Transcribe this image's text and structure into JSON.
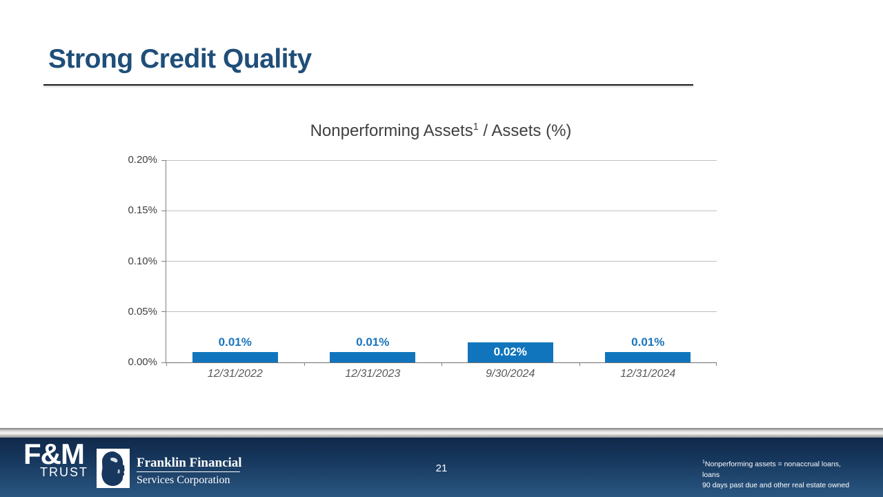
{
  "slide": {
    "title": "Strong Credit Quality",
    "page_number": "21"
  },
  "chart": {
    "title_pre": "Nonperforming Assets",
    "title_sup": "1",
    "title_post": " / Assets (%)"
  },
  "chart_data": {
    "type": "bar",
    "title": "Nonperforming Assets(1) / Assets (%)",
    "categories": [
      "12/31/2022",
      "12/31/2023",
      "9/30/2024",
      "12/31/2024"
    ],
    "values": [
      0.01,
      0.01,
      0.02,
      0.01
    ],
    "data_labels": [
      "0.01%",
      "0.01%",
      "0.02%",
      "0.01%"
    ],
    "label_placement": [
      "above",
      "above",
      "inside",
      "above"
    ],
    "ylim": [
      0,
      0.2
    ],
    "yticks": [
      {
        "value": 0.2,
        "label": "0.20%"
      },
      {
        "value": 0.15,
        "label": "0.15%"
      },
      {
        "value": 0.1,
        "label": "0.10%"
      },
      {
        "value": 0.05,
        "label": "0.05%"
      },
      {
        "value": 0.0,
        "label": "0.00%"
      }
    ],
    "grid": true,
    "legend": false,
    "bar_color": "#1175bd",
    "label_color_above": "#1b75bc",
    "label_color_inside": "#ffffff",
    "xlabel": "",
    "ylabel": ""
  },
  "footer": {
    "fm_logo_main": "F&M",
    "fm_logo_sub": "TRUST",
    "franklin_name": "Franklin Financial",
    "franklin_sub": "Services Corporation",
    "footnote_sup": "1",
    "footnote_line1": "Nonperforming assets = nonaccrual loans, loans",
    "footnote_line2": "90 days past due and other real estate owned"
  },
  "colors": {
    "title_navy": "#1f4e79",
    "bar_blue": "#1175bd",
    "gridline_gray": "#bfbfbf",
    "axis_gray": "#808080",
    "footer_navy_top": "#10294a",
    "footer_navy_bottom": "#2a5781"
  }
}
